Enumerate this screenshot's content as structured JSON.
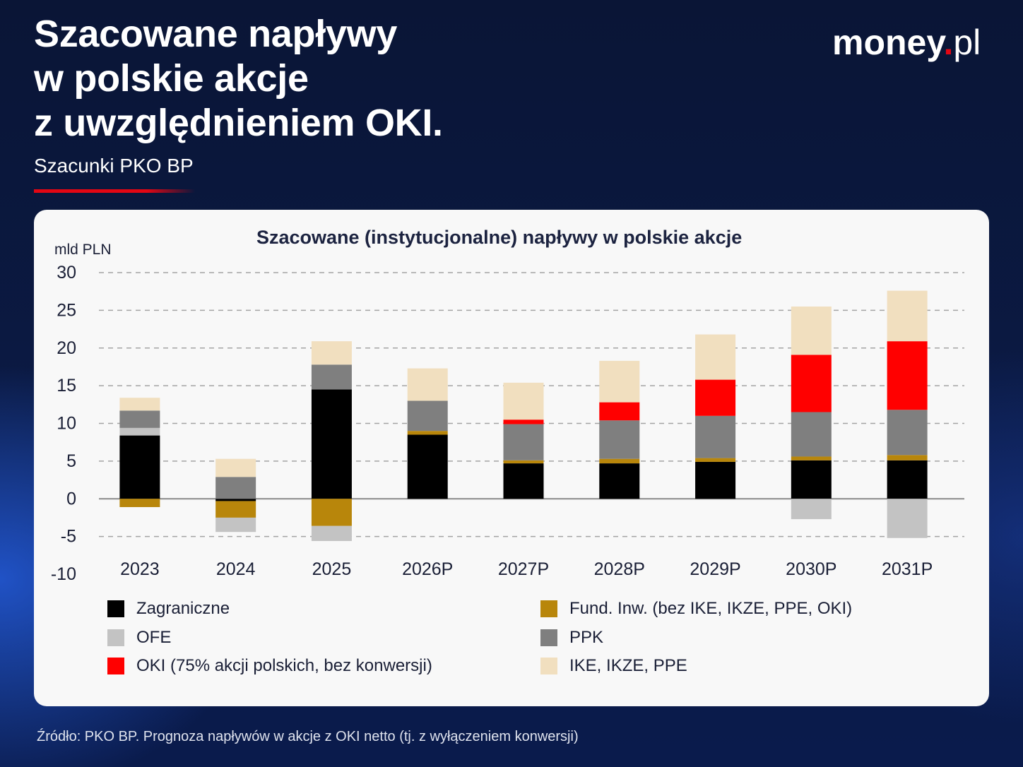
{
  "header": {
    "title_lines": [
      "Szacowane napływy",
      "w polskie akcje",
      "z uwzględnieniem OKI."
    ],
    "subtitle": "Szacunki PKO BP"
  },
  "logo": {
    "word": "money",
    "dot": ".",
    "tld": "pl"
  },
  "source": "Źródło: PKO BP. Prognoza napływów w akcje z OKI netto (tj. z wyłączeniem konwersji)",
  "chart_data": {
    "type": "bar",
    "stacked": true,
    "title": "Szacowane (instytucjonalne) napływy w polskie akcje",
    "xlabel": "",
    "ylabel": "mld PLN",
    "ylim": [
      -10,
      30
    ],
    "yticks": [
      30,
      25,
      20,
      15,
      10,
      5,
      0,
      -5,
      -10
    ],
    "grid": true,
    "legend_position": "bottom",
    "categories": [
      "2023",
      "2024",
      "2025",
      "2026P",
      "2027P",
      "2028P",
      "2029P",
      "2030P",
      "2031P"
    ],
    "series": [
      {
        "name": "Zagraniczne",
        "color": "#000000",
        "values": [
          8.4,
          -0.3,
          14.5,
          8.5,
          4.7,
          4.7,
          4.9,
          5.1,
          5.1
        ]
      },
      {
        "name": "Fund. Inw. (bez IKE, IKZE, PPE, OKI)",
        "color": "#b8860b",
        "values": [
          -1.1,
          -2.2,
          -3.6,
          0.5,
          0.4,
          0.6,
          0.5,
          0.5,
          0.7
        ]
      },
      {
        "name": "OFE",
        "color": "#c3c3c3",
        "values": [
          1.0,
          -1.9,
          -2.0,
          0,
          0,
          0,
          0,
          -2.7,
          -5.2
        ]
      },
      {
        "name": "PPK",
        "color": "#7f7f7f",
        "values": [
          2.3,
          2.9,
          3.3,
          4.0,
          4.8,
          5.1,
          5.6,
          5.9,
          6.0
        ]
      },
      {
        "name": "OKI (75% akcji polskich, bez konwersji)",
        "color": "#ff0000",
        "values": [
          0,
          0,
          0,
          0,
          0.6,
          2.4,
          4.8,
          7.6,
          9.1
        ]
      },
      {
        "name": "IKE, IKZE, PPE",
        "color": "#f1dfbf",
        "values": [
          1.7,
          2.4,
          3.1,
          4.3,
          4.9,
          5.5,
          6.0,
          6.4,
          6.7
        ]
      }
    ]
  }
}
